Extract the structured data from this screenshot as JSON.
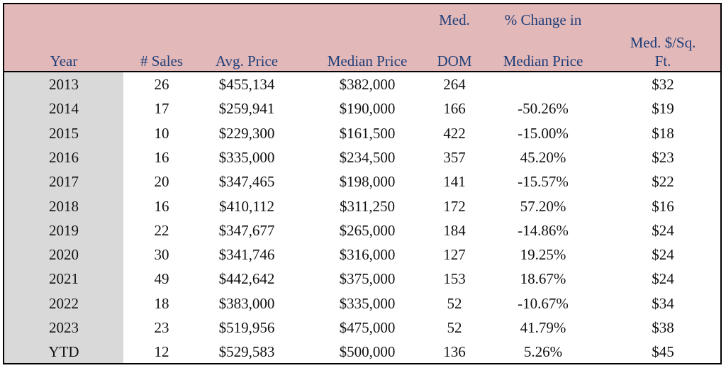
{
  "headers": {
    "year": [
      "",
      "Year"
    ],
    "sales": [
      "",
      "# Sales"
    ],
    "avg": [
      "",
      "Avg. Price"
    ],
    "median": [
      "",
      "Median Price"
    ],
    "dom": [
      "Med.",
      "DOM"
    ],
    "change": [
      "% Change in",
      "Median Price"
    ],
    "sqft": [
      "Med. $/Sq.",
      "Ft."
    ]
  },
  "rows": [
    {
      "year": "2013",
      "sales": "26",
      "avg": "$455,134",
      "median": "$382,000",
      "dom": "264",
      "change": "",
      "sqft": "$32"
    },
    {
      "year": "2014",
      "sales": "17",
      "avg": "$259,941",
      "median": "$190,000",
      "dom": "166",
      "change": "-50.26%",
      "sqft": "$19"
    },
    {
      "year": "2015",
      "sales": "10",
      "avg": "$229,300",
      "median": "$161,500",
      "dom": "422",
      "change": "-15.00%",
      "sqft": "$18"
    },
    {
      "year": "2016",
      "sales": "16",
      "avg": "$335,000",
      "median": "$234,500",
      "dom": "357",
      "change": "45.20%",
      "sqft": "$23"
    },
    {
      "year": "2017",
      "sales": "20",
      "avg": "$347,465",
      "median": "$198,000",
      "dom": "141",
      "change": "-15.57%",
      "sqft": "$22"
    },
    {
      "year": "2018",
      "sales": "16",
      "avg": "$410,112",
      "median": "$311,250",
      "dom": "172",
      "change": "57.20%",
      "sqft": "$16"
    },
    {
      "year": "2019",
      "sales": "22",
      "avg": "$347,677",
      "median": "$265,000",
      "dom": "184",
      "change": "-14.86%",
      "sqft": "$24"
    },
    {
      "year": "2020",
      "sales": "30",
      "avg": "$341,746",
      "median": "$316,000",
      "dom": "127",
      "change": "19.25%",
      "sqft": "$24"
    },
    {
      "year": "2021",
      "sales": "49",
      "avg": "$442,642",
      "median": "$375,000",
      "dom": "153",
      "change": "18.67%",
      "sqft": "$24"
    },
    {
      "year": "2022",
      "sales": "18",
      "avg": "$383,000",
      "median": "$335,000",
      "dom": "52",
      "change": "-10.67%",
      "sqft": "$34"
    },
    {
      "year": "2023",
      "sales": "23",
      "avg": "$519,956",
      "median": "$475,000",
      "dom": "52",
      "change": "41.79%",
      "sqft": "$38"
    },
    {
      "year": "YTD",
      "sales": "12",
      "avg": "$529,583",
      "median": "$500,000",
      "dom": "136",
      "change": "5.26%",
      "sqft": "$45"
    }
  ],
  "colors": {
    "header_bg": "#e3b8b8",
    "header_text": "#1f3f7a",
    "year_col_bg": "#d9d9d9"
  }
}
